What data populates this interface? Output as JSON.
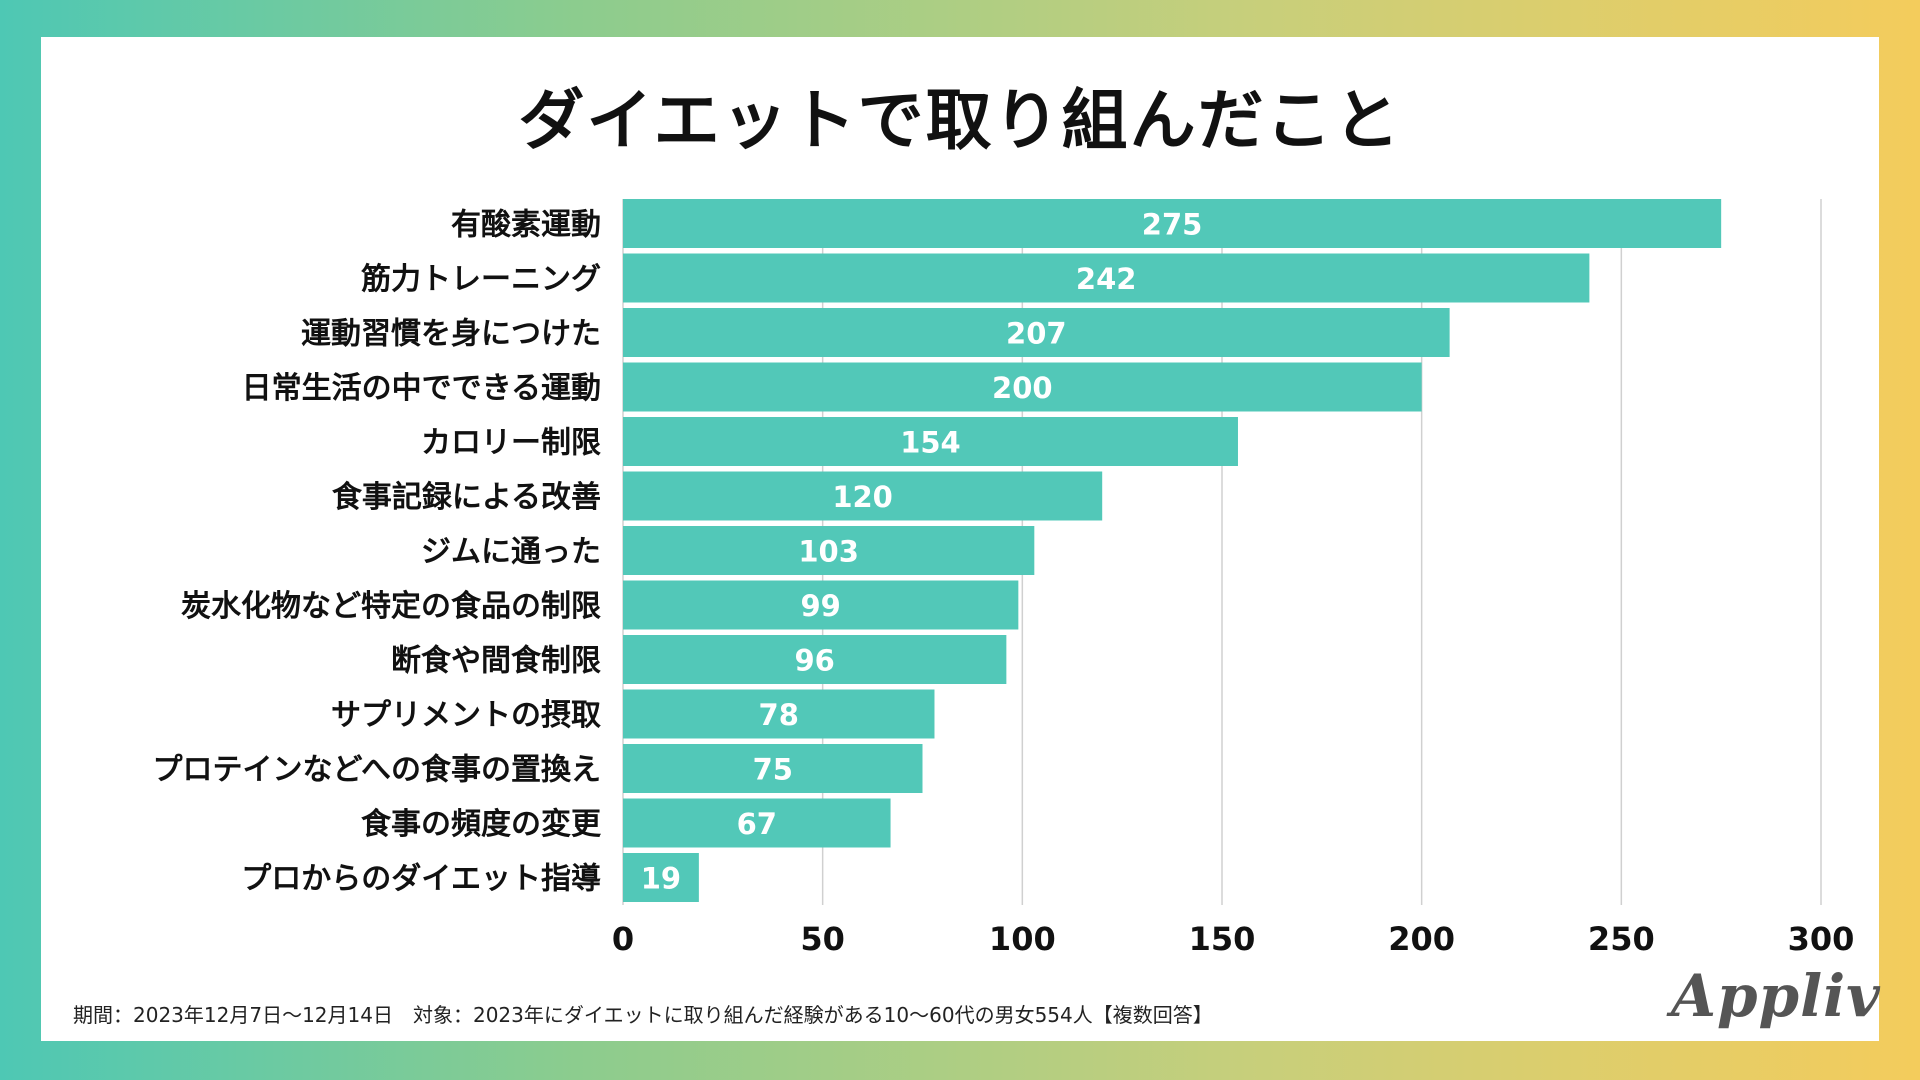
{
  "chart_data": {
    "type": "bar",
    "orientation": "horizontal",
    "title": "ダイエットで取り組んだこと",
    "categories": [
      "有酸素運動",
      "筋力トレーニング",
      "運動習慣を身につけた",
      "日常生活の中でできる運動",
      "カロリー制限",
      "食事記録による改善",
      "ジムに通った",
      "炭水化物など特定の食品の制限",
      "断食や間食制限",
      "サプリメントの摂取",
      "プロテインなどへの食事の置換え",
      "食事の頻度の変更",
      "プロからのダイエット指導"
    ],
    "values": [
      275,
      242,
      207,
      200,
      154,
      120,
      103,
      99,
      96,
      78,
      75,
      67,
      19
    ],
    "xlim": [
      0,
      300
    ],
    "xticks": [
      0,
      50,
      100,
      150,
      200,
      250,
      300
    ],
    "xlabel": "",
    "ylabel": "",
    "grid": true,
    "bar_color": "#52c8b8",
    "label_color": "#ffffff"
  },
  "footnote": "期間：2023年12月7日〜12月14日　対象：2023年にダイエットに取り組んだ経験がある10〜60代の男女554人【複数回答】",
  "brand": "Appliv",
  "colors": {
    "bar": "#52c8b8",
    "grid": "#d0d0d0",
    "text": "#111111"
  }
}
